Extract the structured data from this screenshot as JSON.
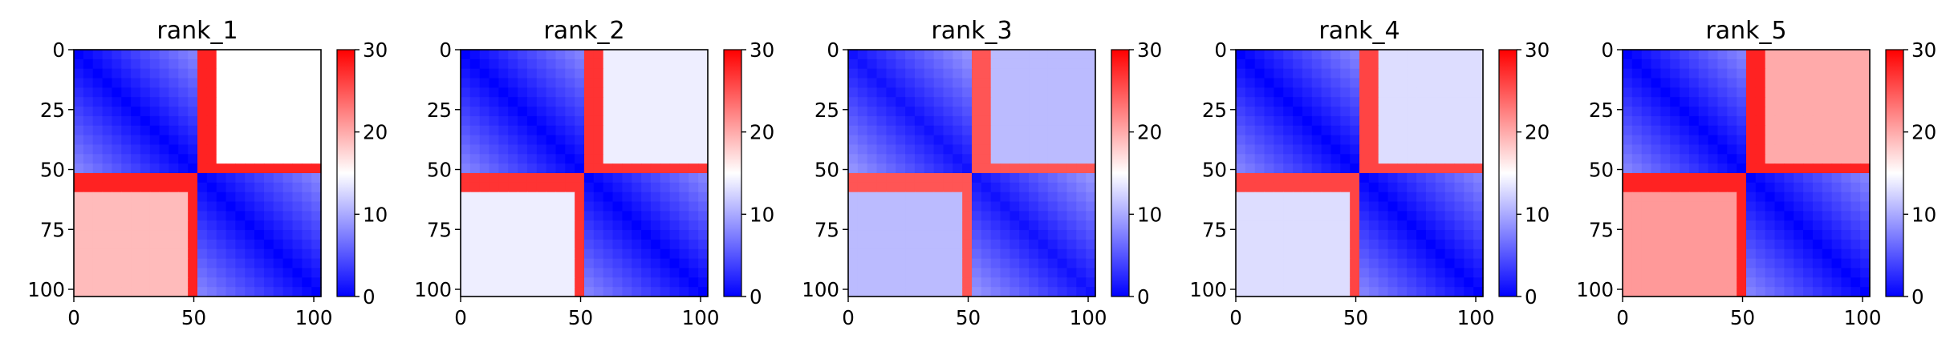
{
  "chart_data": [
    {
      "type": "heatmap",
      "title": "rank_1",
      "xticks": [
        0,
        50,
        100
      ],
      "yticks": [
        0,
        25,
        50,
        75,
        100
      ],
      "xlim": [
        0,
        103
      ],
      "ylim": [
        103,
        0
      ],
      "colorbar": {
        "ticks": [
          0,
          10,
          20,
          30
        ],
        "range": [
          0,
          30
        ],
        "colormap": "bwr"
      },
      "boundary": 53,
      "block_values": {
        "on_diagonal": 0,
        "off_top_right": 15,
        "off_bottom_left": 19,
        "stripe": 28
      }
    },
    {
      "type": "heatmap",
      "title": "rank_2",
      "xticks": [
        0,
        50,
        100
      ],
      "yticks": [
        0,
        25,
        50,
        75,
        100
      ],
      "xlim": [
        0,
        103
      ],
      "ylim": [
        103,
        0
      ],
      "colorbar": {
        "ticks": [
          0,
          10,
          20,
          30
        ],
        "range": [
          0,
          30
        ],
        "colormap": "bwr"
      },
      "boundary": 53,
      "block_values": {
        "on_diagonal": 0,
        "off_top_right": 14,
        "off_bottom_left": 14,
        "stripe": 27
      }
    },
    {
      "type": "heatmap",
      "title": "rank_3",
      "xticks": [
        0,
        50,
        100
      ],
      "yticks": [
        0,
        25,
        50,
        75,
        100
      ],
      "xlim": [
        0,
        103
      ],
      "ylim": [
        103,
        0
      ],
      "colorbar": {
        "ticks": [
          0,
          10,
          20,
          30
        ],
        "range": [
          0,
          30
        ],
        "colormap": "bwr"
      },
      "boundary": 53,
      "block_values": {
        "on_diagonal": 1,
        "off_top_right": 11,
        "off_bottom_left": 11,
        "stripe": 25
      }
    },
    {
      "type": "heatmap",
      "title": "rank_4",
      "xticks": [
        0,
        50,
        100
      ],
      "yticks": [
        0,
        25,
        50,
        75,
        100
      ],
      "xlim": [
        0,
        103
      ],
      "ylim": [
        103,
        0
      ],
      "colorbar": {
        "ticks": [
          0,
          10,
          20,
          30
        ],
        "range": [
          0,
          30
        ],
        "colormap": "bwr"
      },
      "boundary": 53,
      "block_values": {
        "on_diagonal": 0,
        "off_top_right": 13,
        "off_bottom_left": 13,
        "stripe": 26
      }
    },
    {
      "type": "heatmap",
      "title": "rank_5",
      "xticks": [
        0,
        50,
        100
      ],
      "yticks": [
        0,
        25,
        50,
        75,
        100
      ],
      "xlim": [
        0,
        103
      ],
      "ylim": [
        103,
        0
      ],
      "colorbar": {
        "ticks": [
          0,
          10,
          20,
          30
        ],
        "range": [
          0,
          30
        ],
        "colormap": "bwr"
      },
      "boundary": 53,
      "block_values": {
        "on_diagonal": 0,
        "off_top_right": 20,
        "off_bottom_left": 21,
        "stripe": 28
      }
    }
  ]
}
